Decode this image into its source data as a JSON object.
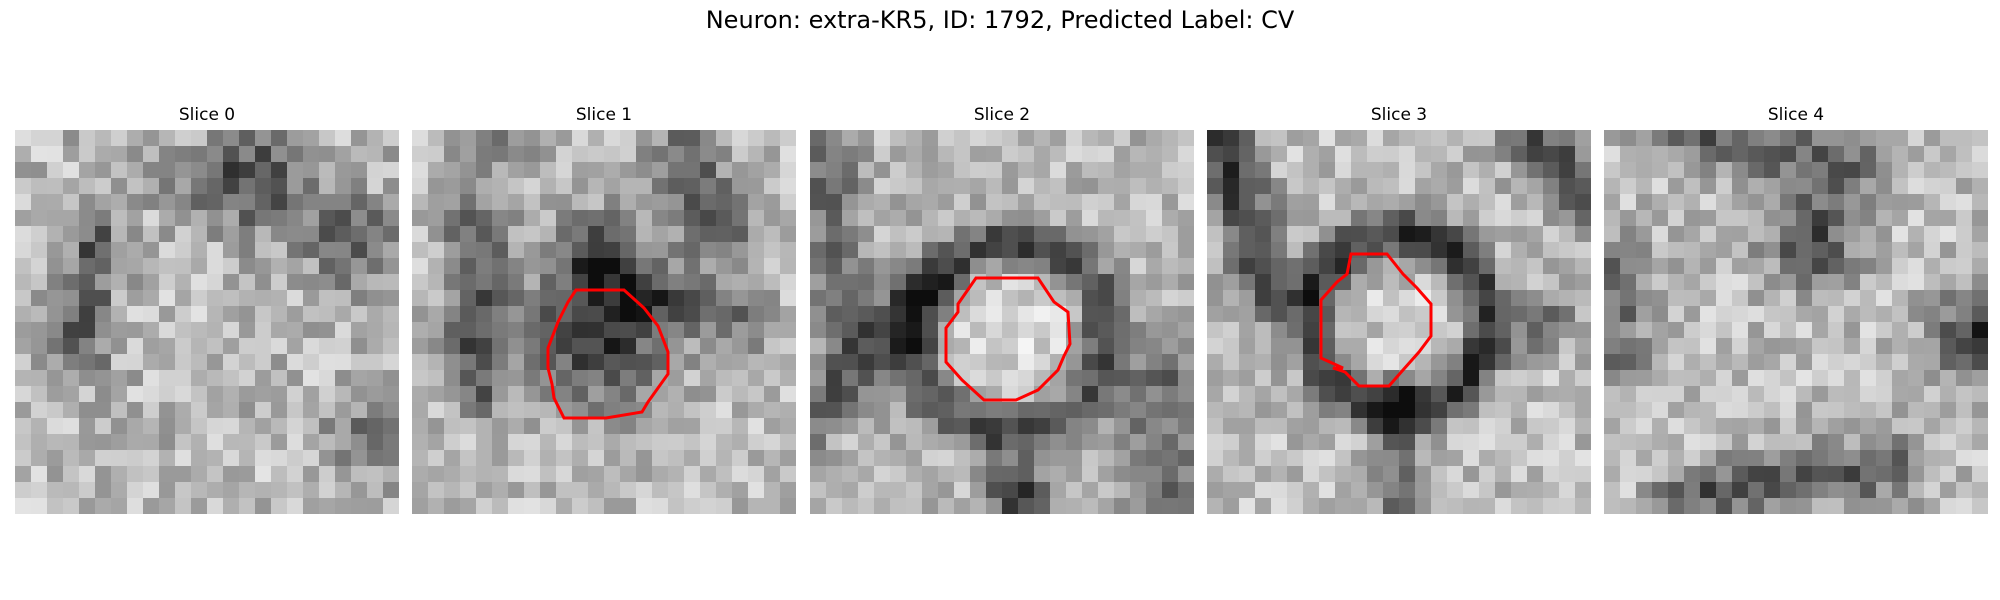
{
  "figure": {
    "title": "Neuron: extra-KR5, ID: 1792, Predicted Label: CV"
  },
  "panels": [
    {
      "title": "Slice 0",
      "has_contour": false
    },
    {
      "title": "Slice 1",
      "has_contour": true
    },
    {
      "title": "Slice 2",
      "has_contour": true
    },
    {
      "title": "Slice 3",
      "has_contour": true
    },
    {
      "title": "Slice 4",
      "has_contour": false
    }
  ],
  "colors": {
    "contour": "#ff0000",
    "background": "#ffffff"
  }
}
